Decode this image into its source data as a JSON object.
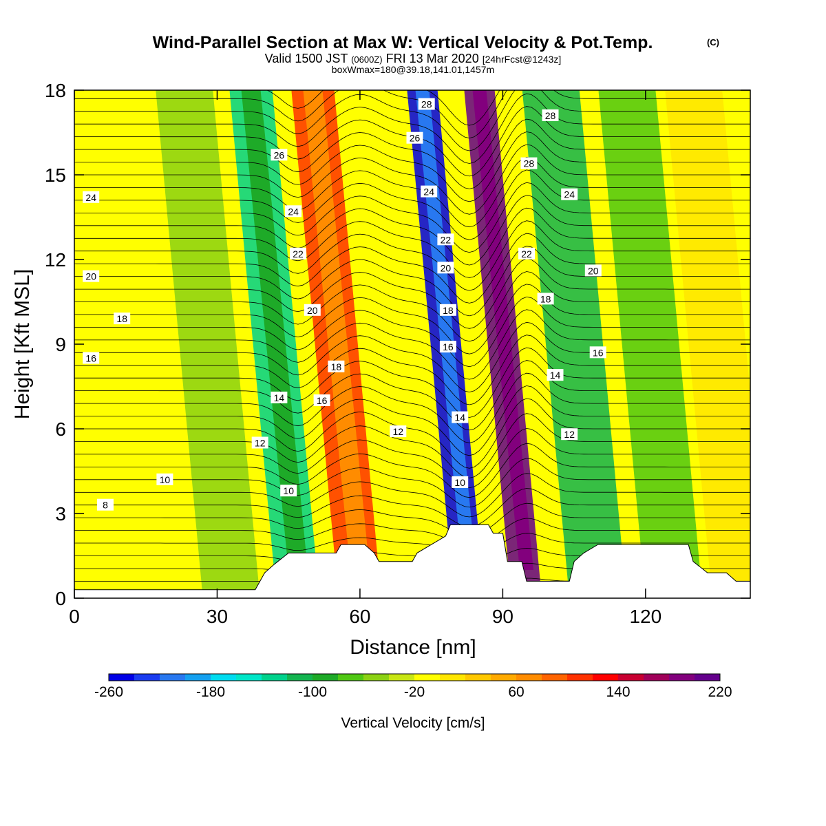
{
  "title": {
    "main": "Wind-Parallel Section at Max W: Vertical Velocity & Pot.Temp.",
    "copyright": "(C)",
    "valid_prefix": "Valid 1500 JST",
    "valid_utc": "(0600Z)",
    "valid_date": "FRI 13 Mar 2020",
    "fcst": "[24hrFcst@1243z]",
    "box": "boxWmax=180@39.18,141.01,1457m"
  },
  "chart_data": {
    "type": "contour",
    "xlabel": "Distance [nm]",
    "ylabel": "Height [Kft MSL]",
    "xlim": [
      0,
      142
    ],
    "ylim": [
      0,
      18
    ],
    "x_ticks": [
      0,
      30,
      60,
      90,
      120
    ],
    "y_ticks": [
      0,
      3,
      6,
      9,
      12,
      15,
      18
    ],
    "colorbar": {
      "label": "Vertical Velocity [cm/s]",
      "tick_labels": [
        "-260",
        "-180",
        "-100",
        "-20",
        "60",
        "140",
        "220"
      ],
      "colors": [
        "#0000e6",
        "#1a3cf0",
        "#2878f0",
        "#14a0f0",
        "#00dcf0",
        "#00e6c8",
        "#00d28c",
        "#14b450",
        "#1eaa28",
        "#50c814",
        "#8cd214",
        "#c8e614",
        "#ffff00",
        "#ffe600",
        "#ffc800",
        "#ffaa00",
        "#ff8c00",
        "#ff6400",
        "#ff3200",
        "#ff0000",
        "#c80032",
        "#a0005a",
        "#82007d",
        "#64008c"
      ]
    },
    "velocity_bands": [
      {
        "center_nm": 10,
        "value": 0
      },
      {
        "center_nm": 33,
        "value": -40
      },
      {
        "center_nm": 47,
        "value": -120
      },
      {
        "center_nm": 60,
        "value": 130
      },
      {
        "center_nm": 83,
        "value": -250
      },
      {
        "center_nm": 95,
        "value": 260
      },
      {
        "center_nm": 110,
        "value": -90
      },
      {
        "center_nm": 126,
        "value": -60
      },
      {
        "center_nm": 140,
        "value": 40
      }
    ],
    "theta_contour_labels": [
      {
        "text": "8",
        "x": 6.5,
        "y": 3.3
      },
      {
        "text": "10",
        "x": 19,
        "y": 4.2
      },
      {
        "text": "10",
        "x": 45,
        "y": 3.8
      },
      {
        "text": "10",
        "x": 81,
        "y": 4.1
      },
      {
        "text": "12",
        "x": 39,
        "y": 5.5
      },
      {
        "text": "12",
        "x": 68,
        "y": 5.9
      },
      {
        "text": "12",
        "x": 104,
        "y": 5.8
      },
      {
        "text": "14",
        "x": 43,
        "y": 7.1
      },
      {
        "text": "14",
        "x": 81,
        "y": 6.4
      },
      {
        "text": "14",
        "x": 101,
        "y": 7.9
      },
      {
        "text": "16",
        "x": 3.5,
        "y": 8.5
      },
      {
        "text": "16",
        "x": 52,
        "y": 7.0
      },
      {
        "text": "16",
        "x": 78.5,
        "y": 8.9
      },
      {
        "text": "16",
        "x": 110,
        "y": 8.7
      },
      {
        "text": "18",
        "x": 10,
        "y": 9.9
      },
      {
        "text": "18",
        "x": 55,
        "y": 8.2
      },
      {
        "text": "18",
        "x": 78.5,
        "y": 10.2
      },
      {
        "text": "18",
        "x": 99,
        "y": 10.6
      },
      {
        "text": "20",
        "x": 3.5,
        "y": 11.4
      },
      {
        "text": "20",
        "x": 50,
        "y": 10.2
      },
      {
        "text": "20",
        "x": 78,
        "y": 11.7
      },
      {
        "text": "20",
        "x": 109,
        "y": 11.6
      },
      {
        "text": "22",
        "x": 47,
        "y": 12.2
      },
      {
        "text": "22",
        "x": 78,
        "y": 12.7
      },
      {
        "text": "22",
        "x": 95,
        "y": 12.2
      },
      {
        "text": "24",
        "x": 3.5,
        "y": 14.2
      },
      {
        "text": "24",
        "x": 46,
        "y": 13.7
      },
      {
        "text": "24",
        "x": 74.5,
        "y": 14.4
      },
      {
        "text": "24",
        "x": 104,
        "y": 14.3
      },
      {
        "text": "26",
        "x": 43,
        "y": 15.7
      },
      {
        "text": "26",
        "x": 71.5,
        "y": 16.3
      },
      {
        "text": "28",
        "x": 95.5,
        "y": 15.4
      },
      {
        "text": "28",
        "x": 74,
        "y": 17.5
      },
      {
        "text": "28",
        "x": 100,
        "y": 17.1
      }
    ],
    "terrain_kft": [
      [
        0,
        0.3
      ],
      [
        38,
        0.3
      ],
      [
        39,
        0.6
      ],
      [
        40,
        0.9
      ],
      [
        42,
        1.2
      ],
      [
        45,
        1.6
      ],
      [
        55,
        1.6
      ],
      [
        56,
        1.9
      ],
      [
        61,
        1.9
      ],
      [
        63,
        1.6
      ],
      [
        64,
        1.3
      ],
      [
        71,
        1.3
      ],
      [
        72,
        1.6
      ],
      [
        75,
        1.9
      ],
      [
        78,
        2.2
      ],
      [
        79,
        2.6
      ],
      [
        87,
        2.6
      ],
      [
        88,
        2.3
      ],
      [
        90,
        2.3
      ],
      [
        91,
        1.3
      ],
      [
        94,
        1.3
      ],
      [
        95,
        0.6
      ],
      [
        104,
        0.6
      ],
      [
        105,
        1.3
      ],
      [
        107,
        1.6
      ],
      [
        110,
        1.9
      ],
      [
        129,
        1.9
      ],
      [
        130,
        1.3
      ],
      [
        133,
        0.9
      ],
      [
        137,
        0.9
      ],
      [
        139,
        0.6
      ],
      [
        142,
        0.6
      ]
    ]
  }
}
